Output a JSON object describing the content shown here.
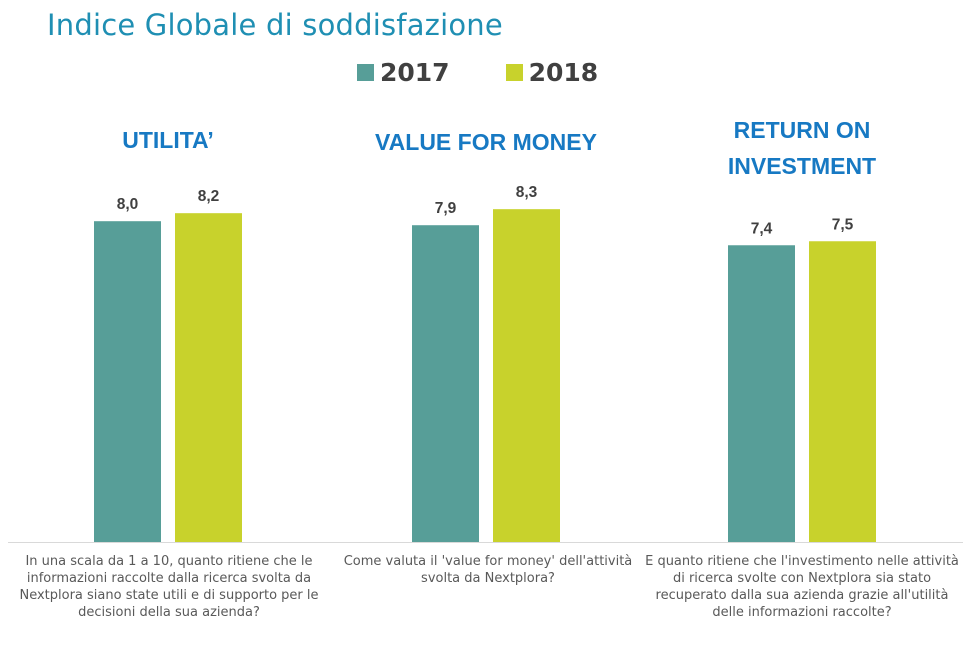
{
  "title": "Indice Globale di soddisfazione",
  "legend": [
    {
      "label": "2017",
      "color": "#579e98"
    },
    {
      "label": "2018",
      "color": "#c8d22c"
    }
  ],
  "chart_data": {
    "type": "bar",
    "title": "Indice Globale di soddisfazione",
    "categories": [
      "UTILITA’",
      "VALUE FOR MONEY",
      "RETURN ON INVESTMENT"
    ],
    "series": [
      {
        "name": "2017",
        "values": [
          8.0,
          7.9,
          7.4
        ],
        "labels": [
          "8,0",
          "7,9",
          "7,4"
        ],
        "color": "#579e98"
      },
      {
        "name": "2018",
        "values": [
          8.2,
          8.3,
          7.5
        ],
        "labels": [
          "8,2",
          "8,3",
          "7,5"
        ],
        "color": "#c8d22c"
      }
    ],
    "ylim": [
      0,
      10
    ],
    "grid": false,
    "legend_position": "top-center"
  },
  "groups": [
    {
      "title_lines": [
        "UTILITA’"
      ],
      "question": "In una scala da 1 a 10, quanto ritiene che le informazioni raccolte dalla ricerca svolta da Nextplora siano state utili e di supporto per le decisioni della sua azienda?"
    },
    {
      "title_lines": [
        "VALUE FOR MONEY"
      ],
      "question": "Come valuta il 'value for money' dell'attività svolta da Nextplora?"
    },
    {
      "title_lines": [
        "RETURN ON",
        "INVESTMENT"
      ],
      "question": "E quanto ritiene che l'investimento nelle attività di ricerca svolte con Nextplora sia stato recuperato dalla sua azienda grazie all'utilità delle informazioni raccolte?"
    }
  ]
}
